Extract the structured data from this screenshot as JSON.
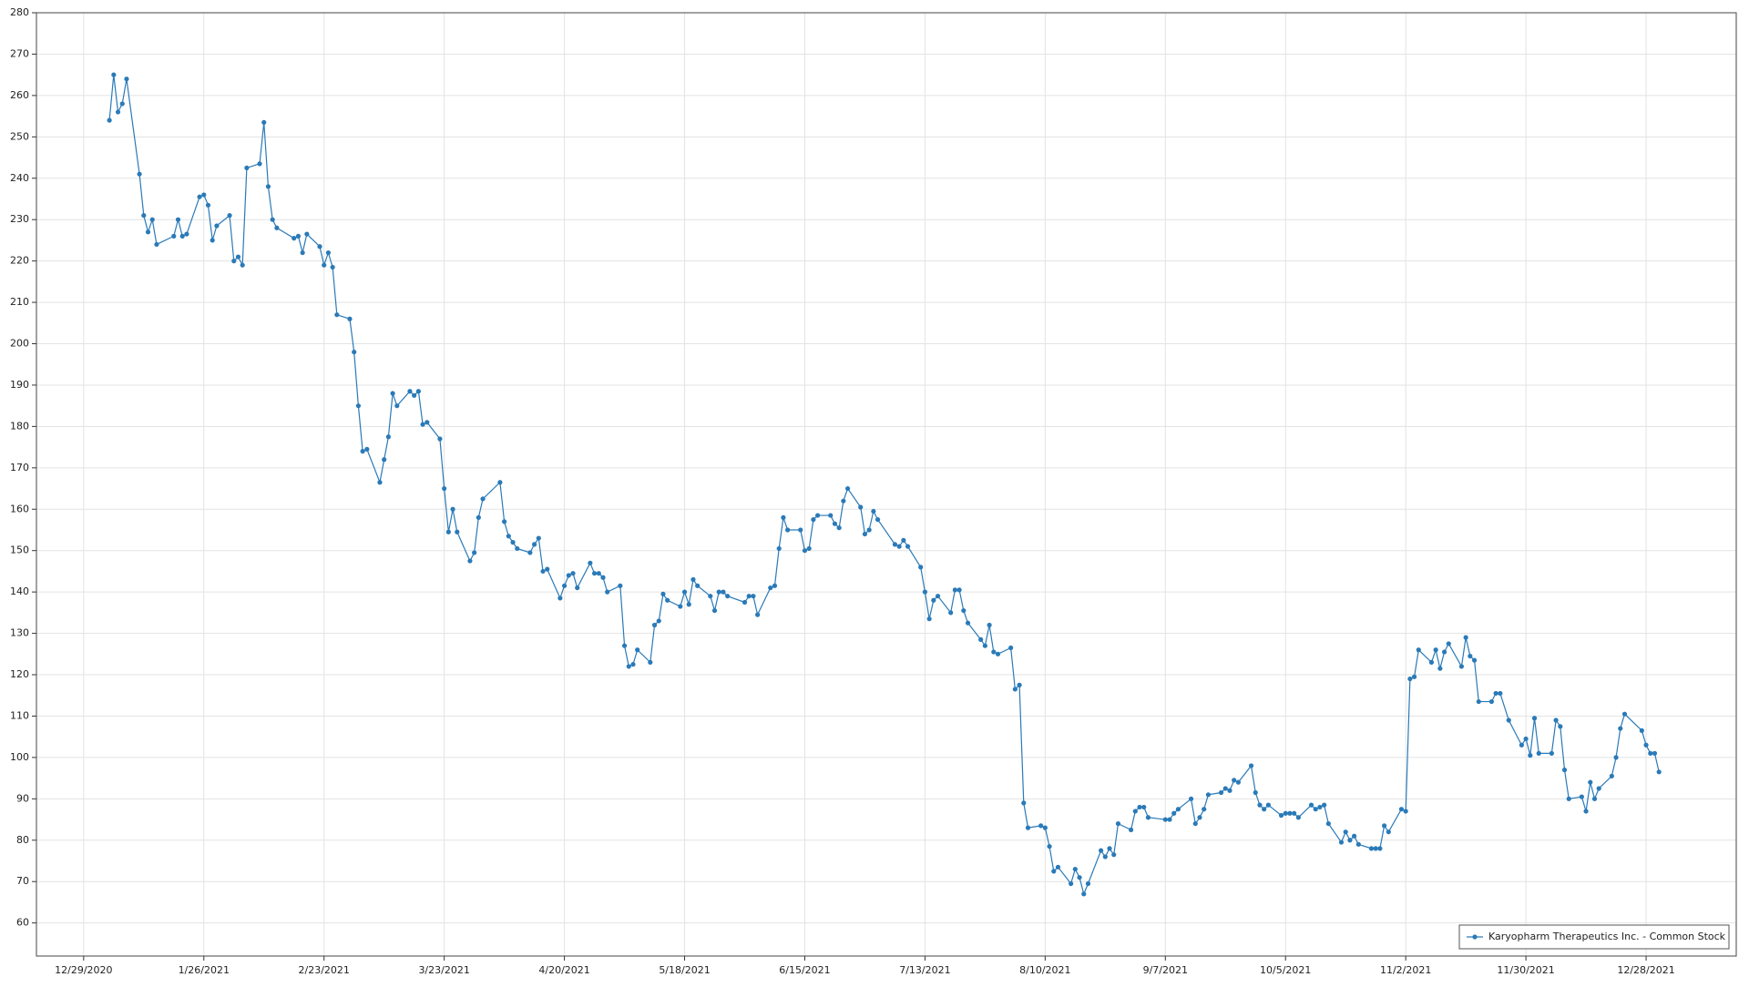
{
  "chart_data": {
    "type": "line",
    "x": [
      "1/4/2021",
      "1/5/2021",
      "1/6/2021",
      "1/7/2021",
      "1/8/2021",
      "1/11/2021",
      "1/12/2021",
      "1/13/2021",
      "1/14/2021",
      "1/15/2021",
      "1/19/2021",
      "1/20/2021",
      "1/21/2021",
      "1/22/2021",
      "1/25/2021",
      "1/26/2021",
      "1/27/2021",
      "1/28/2021",
      "1/29/2021",
      "2/1/2021",
      "2/2/2021",
      "2/3/2021",
      "2/4/2021",
      "2/5/2021",
      "2/8/2021",
      "2/9/2021",
      "2/10/2021",
      "2/11/2021",
      "2/12/2021",
      "2/16/2021",
      "2/17/2021",
      "2/18/2021",
      "2/19/2021",
      "2/22/2021",
      "2/23/2021",
      "2/24/2021",
      "2/25/2021",
      "2/26/2021",
      "3/1/2021",
      "3/2/2021",
      "3/3/2021",
      "3/4/2021",
      "3/5/2021",
      "3/8/2021",
      "3/9/2021",
      "3/10/2021",
      "3/11/2021",
      "3/12/2021",
      "3/15/2021",
      "3/16/2021",
      "3/17/2021",
      "3/18/2021",
      "3/19/2021",
      "3/22/2021",
      "3/23/2021",
      "3/24/2021",
      "3/25/2021",
      "3/26/2021",
      "3/29/2021",
      "3/30/2021",
      "3/31/2021",
      "4/1/2021",
      "4/5/2021",
      "4/6/2021",
      "4/7/2021",
      "4/8/2021",
      "4/9/2021",
      "4/12/2021",
      "4/13/2021",
      "4/14/2021",
      "4/15/2021",
      "4/16/2021",
      "4/19/2021",
      "4/20/2021",
      "4/21/2021",
      "4/22/2021",
      "4/23/2021",
      "4/26/2021",
      "4/27/2021",
      "4/28/2021",
      "4/29/2021",
      "4/30/2021",
      "5/3/2021",
      "5/4/2021",
      "5/5/2021",
      "5/6/2021",
      "5/7/2021",
      "5/10/2021",
      "5/11/2021",
      "5/12/2021",
      "5/13/2021",
      "5/14/2021",
      "5/17/2021",
      "5/18/2021",
      "5/19/2021",
      "5/20/2021",
      "5/21/2021",
      "5/24/2021",
      "5/25/2021",
      "5/26/2021",
      "5/27/2021",
      "5/28/2021",
      "6/1/2021",
      "6/2/2021",
      "6/3/2021",
      "6/4/2021",
      "6/7/2021",
      "6/8/2021",
      "6/9/2021",
      "6/10/2021",
      "6/11/2021",
      "6/14/2021",
      "6/15/2021",
      "6/16/2021",
      "6/17/2021",
      "6/18/2021",
      "6/21/2021",
      "6/22/2021",
      "6/23/2021",
      "6/24/2021",
      "6/25/2021",
      "6/28/2021",
      "6/29/2021",
      "6/30/2021",
      "7/1/2021",
      "7/2/2021",
      "7/6/2021",
      "7/7/2021",
      "7/8/2021",
      "7/9/2021",
      "7/12/2021",
      "7/13/2021",
      "7/14/2021",
      "7/15/2021",
      "7/16/2021",
      "7/19/2021",
      "7/20/2021",
      "7/21/2021",
      "7/22/2021",
      "7/23/2021",
      "7/26/2021",
      "7/27/2021",
      "7/28/2021",
      "7/29/2021",
      "7/30/2021",
      "8/2/2021",
      "8/3/2021",
      "8/4/2021",
      "8/5/2021",
      "8/6/2021",
      "8/9/2021",
      "8/10/2021",
      "8/11/2021",
      "8/12/2021",
      "8/13/2021",
      "8/16/2021",
      "8/17/2021",
      "8/18/2021",
      "8/19/2021",
      "8/20/2021",
      "8/23/2021",
      "8/24/2021",
      "8/25/2021",
      "8/26/2021",
      "8/27/2021",
      "8/30/2021",
      "8/31/2021",
      "9/1/2021",
      "9/2/2021",
      "9/3/2021",
      "9/7/2021",
      "9/8/2021",
      "9/9/2021",
      "9/10/2021",
      "9/13/2021",
      "9/14/2021",
      "9/15/2021",
      "9/16/2021",
      "9/17/2021",
      "9/20/2021",
      "9/21/2021",
      "9/22/2021",
      "9/23/2021",
      "9/24/2021",
      "9/27/2021",
      "9/28/2021",
      "9/29/2021",
      "9/30/2021",
      "10/1/2021",
      "10/4/2021",
      "10/5/2021",
      "10/6/2021",
      "10/7/2021",
      "10/8/2021",
      "10/11/2021",
      "10/12/2021",
      "10/13/2021",
      "10/14/2021",
      "10/15/2021",
      "10/18/2021",
      "10/19/2021",
      "10/20/2021",
      "10/21/2021",
      "10/22/2021",
      "10/25/2021",
      "10/26/2021",
      "10/27/2021",
      "10/28/2021",
      "10/29/2021",
      "11/1/2021",
      "11/2/2021",
      "11/3/2021",
      "11/4/2021",
      "11/5/2021",
      "11/8/2021",
      "11/9/2021",
      "11/10/2021",
      "11/11/2021",
      "11/12/2021",
      "11/15/2021",
      "11/16/2021",
      "11/17/2021",
      "11/18/2021",
      "11/19/2021",
      "11/22/2021",
      "11/23/2021",
      "11/24/2021",
      "11/26/2021",
      "11/29/2021",
      "11/30/2021",
      "12/1/2021",
      "12/2/2021",
      "12/3/2021",
      "12/6/2021",
      "12/7/2021",
      "12/8/2021",
      "12/9/2021",
      "12/10/2021",
      "12/13/2021",
      "12/14/2021",
      "12/15/2021",
      "12/16/2021",
      "12/17/2021",
      "12/20/2021",
      "12/21/2021",
      "12/22/2021",
      "12/23/2021",
      "12/27/2021",
      "12/28/2021",
      "12/29/2021",
      "12/30/2021",
      "12/31/2021"
    ],
    "series": [
      {
        "name": "Karyopharm Therapeutics Inc. - Common Stock",
        "color": "#2a7ab8",
        "values": [
          254,
          265,
          256,
          258,
          264,
          241,
          231,
          227,
          230,
          224,
          226,
          230,
          226,
          226.5,
          235.5,
          236,
          233.5,
          225,
          228.5,
          231,
          220,
          221,
          219,
          242.5,
          243.5,
          253.5,
          238,
          230,
          228,
          225.5,
          226,
          222,
          226.5,
          223.5,
          219,
          222,
          218.5,
          207,
          206,
          198,
          185,
          174,
          174.5,
          166.5,
          172,
          177.5,
          188,
          185,
          188.5,
          187.5,
          188.5,
          180.5,
          181,
          177,
          165,
          154.5,
          160,
          154.5,
          147.5,
          149.5,
          158,
          162.5,
          166.5,
          157,
          153.5,
          152,
          150.5,
          149.5,
          151.5,
          153,
          145,
          145.5,
          138.5,
          141.5,
          144,
          144.5,
          141,
          147,
          144.5,
          144.5,
          143.5,
          140,
          141.5,
          127,
          122,
          122.5,
          126,
          123,
          132,
          133,
          139.5,
          138,
          136.5,
          140,
          137,
          143,
          141.5,
          139,
          135.5,
          140,
          140,
          139,
          137.5,
          139,
          139,
          134.5,
          141,
          141.5,
          150.5,
          158,
          155,
          155,
          150,
          150.5,
          157.5,
          158.5,
          158.5,
          156.5,
          155.5,
          162,
          165,
          160.5,
          154,
          155,
          159.5,
          157.5,
          151.5,
          151,
          152.5,
          151,
          146,
          140,
          133.5,
          138,
          139,
          135,
          140.5,
          140.5,
          135.5,
          132.5,
          128.5,
          127,
          132,
          125.5,
          125,
          126.5,
          116.5,
          117.5,
          89,
          83,
          83.5,
          83,
          78.5,
          72.5,
          73.5,
          69.5,
          73,
          71,
          67,
          69.5,
          77.5,
          76,
          78,
          76.5,
          84,
          82.5,
          87,
          88,
          88,
          85.5,
          85,
          85,
          86.5,
          87.5,
          90,
          84,
          85.5,
          87.5,
          91,
          91.5,
          92.5,
          92,
          94.5,
          94,
          98,
          91.5,
          88.5,
          87.5,
          88.5,
          86,
          86.5,
          86.5,
          86.5,
          85.5,
          88.5,
          87.5,
          88,
          88.5,
          84,
          79.5,
          82,
          80,
          81,
          79,
          78,
          78,
          78,
          83.5,
          82,
          87.5,
          87,
          119,
          119.5,
          126,
          123,
          126,
          121.5,
          125.5,
          127.5,
          122,
          129,
          124.5,
          123.5,
          113.5,
          113.5,
          115.5,
          115.5,
          109,
          103,
          104.5,
          100.5,
          109.5,
          101,
          101,
          109,
          107.5,
          97,
          90,
          90.5,
          87,
          94,
          90,
          92.5,
          95.5,
          100,
          107,
          110.5,
          106.5,
          103,
          101,
          101,
          96.5
        ]
      }
    ],
    "xlim": [
      "12/18/2020",
      "1/18/2022"
    ],
    "xticks": [
      "12/29/2020",
      "1/26/2021",
      "2/23/2021",
      "3/23/2021",
      "4/20/2021",
      "5/18/2021",
      "6/15/2021",
      "7/13/2021",
      "8/10/2021",
      "9/7/2021",
      "10/5/2021",
      "11/2/2021",
      "11/30/2021",
      "12/28/2021"
    ],
    "ylim": [
      52,
      280
    ],
    "yticks": [
      60,
      70,
      80,
      90,
      100,
      110,
      120,
      130,
      140,
      150,
      160,
      170,
      180,
      190,
      200,
      210,
      220,
      230,
      240,
      250,
      260,
      270,
      280
    ],
    "grid": true,
    "legend": "bottom-right"
  }
}
